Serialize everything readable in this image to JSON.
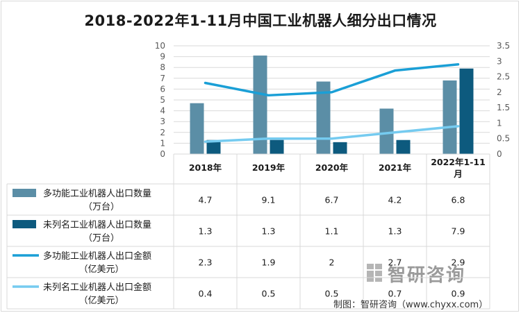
{
  "title": "2018-2022年1-11月中国工业机器人细分出口情况",
  "source": "制图：智研咨询（www.chyxx.com）",
  "watermark": "智研咨询",
  "colors": {
    "bar1": "#5b8ea6",
    "bar2": "#0d5a7e",
    "line1": "#1a9fd6",
    "line2": "#75cbf0",
    "grid": "#d9d9d9"
  },
  "chart_data": {
    "type": "bar+line",
    "categories": [
      "2018年",
      "2019年",
      "2020年",
      "2021年",
      "2022年1-11月"
    ],
    "y_left": {
      "ylim": [
        0,
        10
      ],
      "ticks": [
        "0",
        "1",
        "2",
        "3",
        "4",
        "5",
        "6",
        "7",
        "8",
        "9",
        "10"
      ]
    },
    "y_right": {
      "ylim": [
        0,
        3.5
      ],
      "ticks": [
        "0",
        "0.5",
        "1",
        "1.5",
        "2",
        "2.5",
        "3",
        "3.5"
      ]
    },
    "series": [
      {
        "name": "多功能工业机器人出口数量（万台）",
        "kind": "bar",
        "axis": "left",
        "values": [
          4.7,
          9.1,
          6.7,
          4.2,
          6.8
        ],
        "labels": [
          "4.7",
          "9.1",
          "6.7",
          "4.2",
          "6.8"
        ]
      },
      {
        "name": "未列名工业机器人出口数量（万台）",
        "kind": "bar",
        "axis": "left",
        "values": [
          1.3,
          1.3,
          1.1,
          1.3,
          7.9
        ],
        "labels": [
          "1.3",
          "1.3",
          "1.1",
          "1.3",
          "7.9"
        ]
      },
      {
        "name": "多功能工业机器人出口金额（亿美元）",
        "kind": "line",
        "axis": "right",
        "values": [
          2.3,
          1.9,
          2.0,
          2.7,
          2.9
        ],
        "labels": [
          "2.3",
          "1.9",
          "2",
          "2.7",
          "2.9"
        ]
      },
      {
        "name": "未列名工业机器人出口金额（亿美元）",
        "kind": "line",
        "axis": "right",
        "values": [
          0.4,
          0.5,
          0.5,
          0.7,
          0.9
        ],
        "labels": [
          "0.4",
          "0.5",
          "0.5",
          "0.7",
          "0.9"
        ]
      }
    ],
    "legend_lines": [
      [
        "多功能工业机器人出口数量",
        "（万台）"
      ],
      [
        "未列名工业机器人出口数量",
        "（万台）"
      ],
      [
        "多功能工业机器人出口金额",
        "（亿美元）"
      ],
      [
        "未列名工业机器人出口金额",
        "（亿美元）"
      ]
    ],
    "category_lines": [
      [
        "2018年"
      ],
      [
        "2019年"
      ],
      [
        "2020年"
      ],
      [
        "2021年"
      ],
      [
        "2022年1-11",
        "月"
      ]
    ],
    "legend_placement": "data-table-left",
    "grid": true
  }
}
